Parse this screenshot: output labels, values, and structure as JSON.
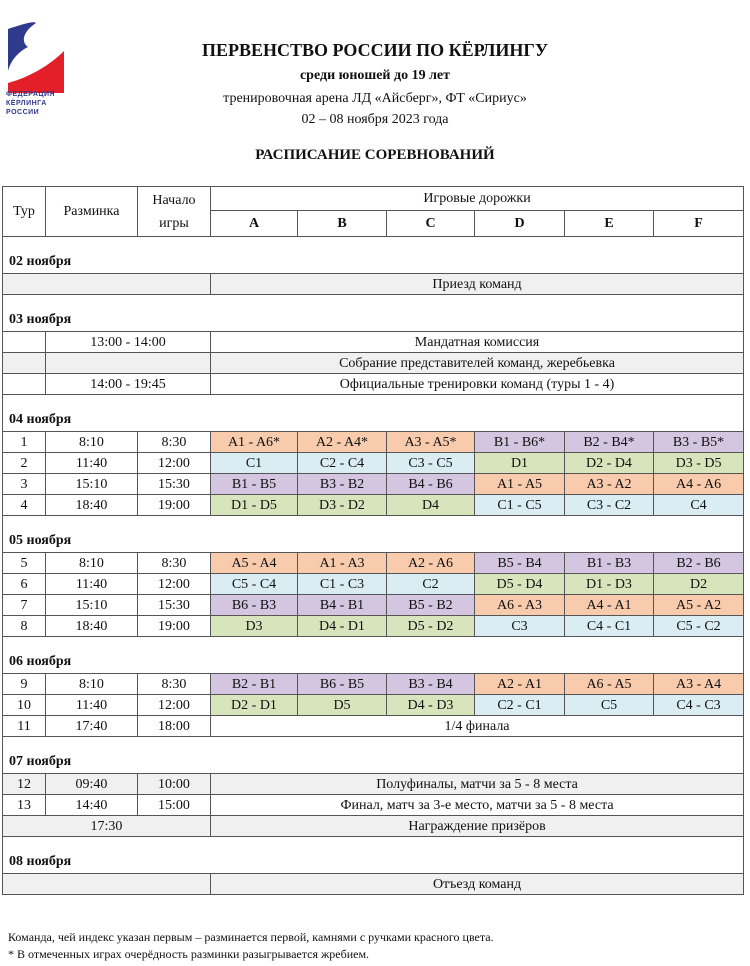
{
  "logo": {
    "text": "ФЕДЕРАЦИЯ КЁРЛИНГА РОССИИ",
    "colors": {
      "blue": "#2f3a8c",
      "red": "#e3202a"
    }
  },
  "header": {
    "title": "ПЕРВЕНСТВО РОССИИ ПО КЁРЛИНГУ",
    "subtitle": "среди юношей до 19 лет",
    "venue": "тренировочная арена ЛД «Айсберг», ФТ «Сириус»",
    "dates": "02 – 08 ноября 2023 года",
    "schedule_title": "РАСПИСАНИЕ СОРЕВНОВАНИЙ"
  },
  "table": {
    "columns": {
      "tour": "Тур",
      "warmup": "Разминка",
      "start": "Начало игры",
      "lanes": "Игровые дорожки"
    },
    "lanes": [
      "A",
      "B",
      "C",
      "D",
      "E",
      "F"
    ],
    "group_colors": {
      "A": "#f8cbad",
      "B": "#d4c5e0",
      "C": "#daedf3",
      "D": "#d8e4bc",
      "shaded": "#f0f0f0"
    },
    "sections": [
      {
        "date": "02 ноября",
        "rows": [
          {
            "type": "event",
            "layout": "blank3",
            "text": "Приезд команд",
            "shaded": true
          }
        ]
      },
      {
        "date": "03 ноября",
        "rows": [
          {
            "type": "event",
            "layout": "time2",
            "time": "13:00  -  14:00",
            "text": "Мандатная комиссия",
            "shaded": false
          },
          {
            "type": "event",
            "layout": "time2",
            "time": "",
            "text": "Собрание представителей команд, жеребьевка",
            "shaded": true
          },
          {
            "type": "event",
            "layout": "time2",
            "time": "14:00  -  19:45",
            "text": "Официальные тренировки команд (туры 1  -  4)",
            "shaded": false
          }
        ]
      },
      {
        "date": "04 ноября",
        "rows": [
          {
            "type": "games",
            "tour": "1",
            "warmup": "8:10",
            "start": "8:30",
            "games": [
              "A1  -  A6*",
              "A2  -  A4*",
              "A3  -  A5*",
              "B1  -  B6*",
              "B2  -  B4*",
              "B3  -  B5*"
            ]
          },
          {
            "type": "games",
            "tour": "2",
            "warmup": "11:40",
            "start": "12:00",
            "games": [
              "C1",
              "C2  -  C4",
              "C3  -  C5",
              "D1",
              "D2  -  D4",
              "D3  -  D5"
            ]
          },
          {
            "type": "games",
            "tour": "3",
            "warmup": "15:10",
            "start": "15:30",
            "games": [
              "B1  -  B5",
              "B3  -  B2",
              "B4  -  B6",
              "A1  -  A5",
              "A3  -  A2",
              "A4  -  A6"
            ]
          },
          {
            "type": "games",
            "tour": "4",
            "warmup": "18:40",
            "start": "19:00",
            "games": [
              "D1  -  D5",
              "D3  -  D2",
              "D4",
              "C1  -  C5",
              "C3  -  C2",
              "C4"
            ]
          }
        ]
      },
      {
        "date": "05 ноября",
        "rows": [
          {
            "type": "games",
            "tour": "5",
            "warmup": "8:10",
            "start": "8:30",
            "games": [
              "A5  -  A4",
              "A1  -  A3",
              "A2  -  A6",
              "B5  -  B4",
              "B1  -  B3",
              "B2  -  B6"
            ]
          },
          {
            "type": "games",
            "tour": "6",
            "warmup": "11:40",
            "start": "12:00",
            "games": [
              "C5  -  C4",
              "C1  -  C3",
              "C2",
              "D5  -  D4",
              "D1  -  D3",
              "D2"
            ]
          },
          {
            "type": "games",
            "tour": "7",
            "warmup": "15:10",
            "start": "15:30",
            "games": [
              "B6  -  B3",
              "B4  -  B1",
              "B5  -  B2",
              "A6  -  A3",
              "A4  -  A1",
              "A5  -  A2"
            ]
          },
          {
            "type": "games",
            "tour": "8",
            "warmup": "18:40",
            "start": "19:00",
            "games": [
              "D3",
              "D4  -  D1",
              "D5  -  D2",
              "C3",
              "C4  -  C1",
              "C5  -  C2"
            ]
          }
        ]
      },
      {
        "date": "06 ноября",
        "rows": [
          {
            "type": "games",
            "tour": "9",
            "warmup": "8:10",
            "start": "8:30",
            "games": [
              "B2  -  B1",
              "B6  -  B5",
              "B3  -  B4",
              "A2  -  A1",
              "A6  -  A5",
              "A3  -  A4"
            ]
          },
          {
            "type": "games",
            "tour": "10",
            "warmup": "11:40",
            "start": "12:00",
            "games": [
              "D2  -  D1",
              "D5",
              "D4  -  D3",
              "C2  -  C1",
              "C5",
              "C4  -  C3"
            ]
          },
          {
            "type": "event",
            "layout": "full",
            "tour": "11",
            "warmup": "17:40",
            "start": "18:00",
            "text": "1/4 финала",
            "shaded": false
          }
        ]
      },
      {
        "date": "07 ноября",
        "rows": [
          {
            "type": "event",
            "layout": "full",
            "tour": "12",
            "warmup": "09:40",
            "start": "10:00",
            "text": "Полуфиналы, матчи за 5 - 8 места",
            "shaded": true
          },
          {
            "type": "event",
            "layout": "full",
            "tour": "13",
            "warmup": "14:40",
            "start": "15:00",
            "text": "Финал, матч за 3-е место, матчи за 5 - 8 места",
            "shaded": false
          },
          {
            "type": "event",
            "layout": "time3",
            "time": "17:30",
            "text": "Награждение призёров",
            "shaded": true
          }
        ]
      },
      {
        "date": "08 ноября",
        "rows": [
          {
            "type": "event",
            "layout": "blank3",
            "text": "Отъезд команд",
            "shaded": true
          }
        ]
      }
    ]
  },
  "notes": [
    "Команда, чей индекс указан первым – разминается первой, камнями с ручками красного цвета.",
    "* В отмеченных играх очерёдность разминки разыгрывается жребием."
  ]
}
